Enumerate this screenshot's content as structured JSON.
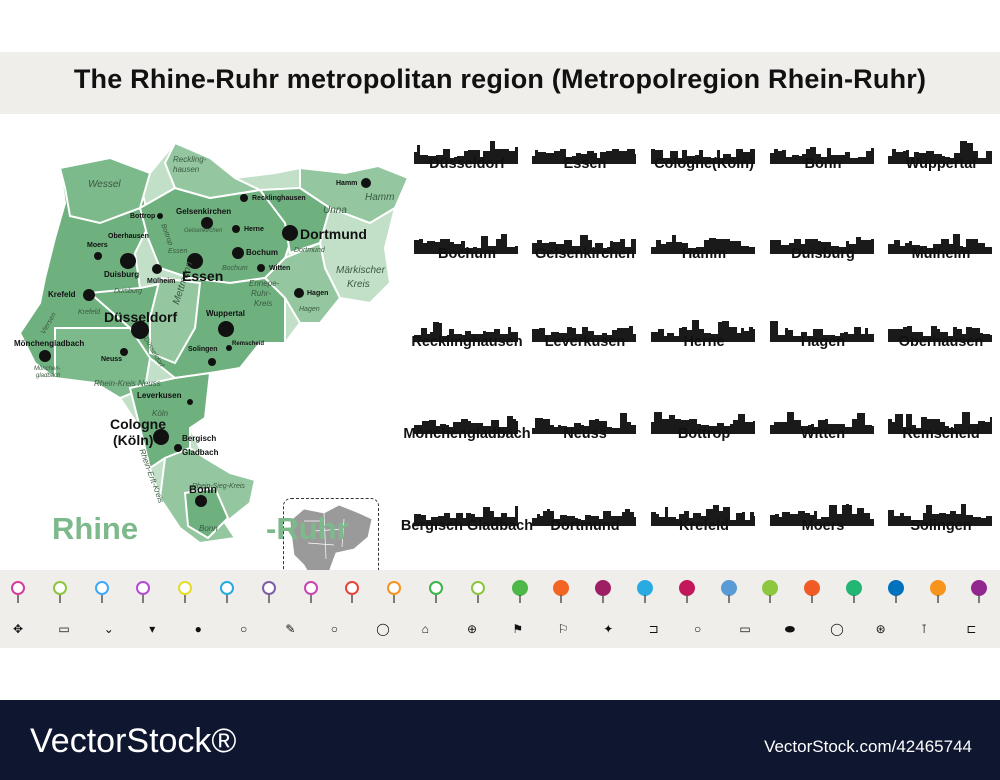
{
  "title": "The Rhine-Ruhr metropolitan region (Metropolregion Rhein-Ruhr)",
  "map": {
    "word_left": "Rhine",
    "word_right": "-Ruhr",
    "cities": [
      {
        "label": "Dortmund",
        "size": "big"
      },
      {
        "label": "Essen",
        "size": "big"
      },
      {
        "label": "Düsseldorf",
        "size": "big"
      },
      {
        "label": "Cologne",
        "size": "big"
      },
      {
        "label": "(Köln)",
        "size": "big"
      },
      {
        "label": "Bonn",
        "size": "med"
      },
      {
        "label": "Duisburg",
        "size": "med"
      },
      {
        "label": "Bochum",
        "size": "med"
      },
      {
        "label": "Gelsenkirchen",
        "size": "med"
      },
      {
        "label": "Wuppertal",
        "size": "med"
      },
      {
        "label": "Krefeld",
        "size": "med"
      },
      {
        "label": "Mönchengladbach",
        "size": "med"
      },
      {
        "label": "Leverkusen",
        "size": "med"
      },
      {
        "label": "Bergisch",
        "size": "med"
      },
      {
        "label": "Gladbach",
        "size": "med"
      },
      {
        "label": "Hamm",
        "size": "small"
      },
      {
        "label": "Recklinghausen",
        "size": "small"
      },
      {
        "label": "Bottrop",
        "size": "small"
      },
      {
        "label": "Oberhausen",
        "size": "small"
      },
      {
        "label": "Moers",
        "size": "small"
      },
      {
        "label": "Mülheim",
        "size": "small"
      },
      {
        "label": "Herne",
        "size": "small"
      },
      {
        "label": "Witten",
        "size": "small"
      },
      {
        "label": "Hagen",
        "size": "small"
      },
      {
        "label": "Neuss",
        "size": "small"
      },
      {
        "label": "Solingen",
        "size": "small"
      },
      {
        "label": "Remscheid",
        "size": "small"
      }
    ],
    "districts": [
      "Wessel",
      "Reckling-",
      "hausen",
      "Unna",
      "Hamm",
      "Märkischer",
      "Kreis",
      "Mettmann",
      "Rhein-Kreis Neuss",
      "Köln",
      "Rhein-Erft-Kreis",
      "Rhein-Sieg-Kreis",
      "Bonn",
      "Dortmund",
      "Ennepe-",
      "Ruhr-",
      "Kreis",
      "Hagen",
      "Duisburg",
      "Krefeld",
      "Düsseldorf",
      "Viersen",
      "Mönchen-",
      "gladbach",
      "Bottrop",
      "Essen",
      "Bochum",
      "Gelsenkirchen"
    ]
  },
  "skylines": [
    [
      "Düsseldorf",
      "Essen",
      "Cologne(Köln)",
      "Bonn",
      "Wuppertal"
    ],
    [
      "Bochum",
      "Gelsenkirchen",
      "Hamm",
      "Duisburg",
      "Mülheim"
    ],
    [
      "Recklinghausen",
      "Leverkusen",
      "Herne",
      "Hagen",
      "Oberhausen"
    ],
    [
      "Mönchengladbach",
      "Neuss",
      "Bottrop",
      "Witten",
      "Remscheid"
    ],
    [
      "Bergisch Gladbach",
      "Dortmund",
      "Krefeld",
      "Moers",
      "Solingen"
    ]
  ],
  "colors": {
    "map_dark": "#6fb07f",
    "map_mid": "#94c7a0",
    "map_light": "#c2e0c8",
    "accent_text": "#7db98b",
    "footer_bg": "#0e1630",
    "band_bg": "#f0eeea"
  },
  "pins_row1": [
    "#d13fa0",
    "#8cc63f",
    "#3fa9f5",
    "#b44bd6",
    "#e6dc2a",
    "#29a9e1",
    "#7b5ea7",
    "#c945b0",
    "#e8443a",
    "#f7931e",
    "#39b54a",
    "#8cc63f",
    "#4db848",
    "#f26522",
    "#9e1f63",
    "#29abe2",
    "#c2185b",
    "#5b9bd5",
    "#8dc63f",
    "#f15a24",
    "#22b573",
    "#0071bc",
    "#f7941d",
    "#92278f"
  ],
  "glyphs_row2": [
    "✥",
    "▭",
    "⌄",
    "▾",
    "●",
    "○",
    "✎",
    "○",
    "◯",
    "⌂",
    "⊕",
    "⚑",
    "⚐",
    "✦",
    "⊐",
    "○",
    "▭",
    "⬬",
    "◯",
    "⊛",
    "⊺",
    "⊏"
  ],
  "footer": {
    "brand": "VectorStock®",
    "id": "VectorStock.com/42465744"
  }
}
